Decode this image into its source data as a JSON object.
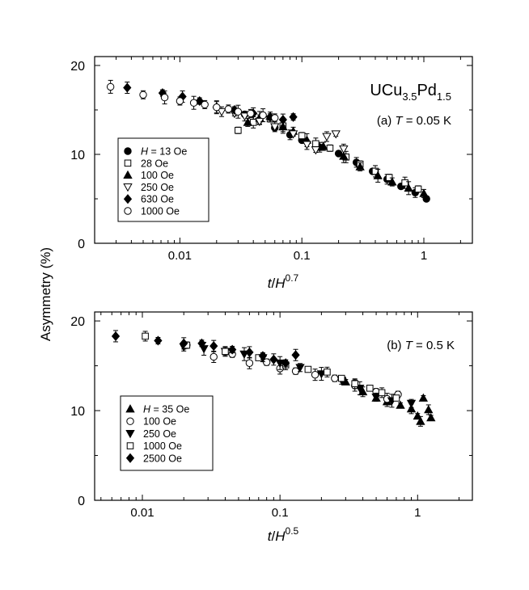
{
  "y_axis_label": "Asymmetry  (%)",
  "chart_data": [
    {
      "type": "scatter",
      "panel": "a",
      "title": "UCu3.5Pd1.5",
      "title_parts": {
        "base1": "UCu",
        "sub1": "3.5",
        "base2": "Pd",
        "sub2": "1.5"
      },
      "subtitle": {
        "prefix": "(a) ",
        "var": "T",
        "suffix": " = 0.05 K"
      },
      "xlabel": {
        "var1": "t",
        "slash": "/",
        "var2": "H",
        "sup": "0.7"
      },
      "ylabel": "Asymmetry  (%)",
      "xscale": "log",
      "xlim": [
        0.002,
        2.5
      ],
      "ylim": [
        0,
        21
      ],
      "xticks": [
        {
          "value": 0.01,
          "label": "0.01"
        },
        {
          "value": 0.1,
          "label": "0.1"
        },
        {
          "value": 1,
          "label": "1"
        }
      ],
      "yticks": [
        {
          "value": 0,
          "label": "0"
        },
        {
          "value": 10,
          "label": "10"
        },
        {
          "value": 20,
          "label": "20"
        }
      ],
      "legend_position": "middle-left",
      "legend_field": "H",
      "series": [
        {
          "name": "H = 13 Oe",
          "label_prefix": "",
          "label_value": "13 Oe",
          "marker": "circle",
          "fill": "#000000",
          "points": [
            [
              0.034,
              14.5
            ],
            [
              0.045,
              13.9
            ],
            [
              0.06,
              13.0
            ],
            [
              0.08,
              12.2
            ],
            [
              0.1,
              11.6
            ],
            [
              0.14,
              10.8
            ],
            [
              0.2,
              10.1
            ],
            [
              0.28,
              9.1
            ],
            [
              0.38,
              8.1
            ],
            [
              0.5,
              7.2
            ],
            [
              0.65,
              6.4
            ],
            [
              0.85,
              5.7
            ],
            [
              1.05,
              5.0
            ]
          ]
        },
        {
          "name": "28 Oe",
          "label_prefix": "",
          "label_value": "28 Oe",
          "marker": "square",
          "fill": "#ffffff",
          "points": [
            [
              0.03,
              12.7
            ],
            [
              0.04,
              13.6
            ],
            [
              0.055,
              14.0
            ],
            [
              0.07,
              13.2
            ],
            [
              0.1,
              12.1
            ],
            [
              0.13,
              11.2
            ],
            [
              0.17,
              10.7
            ],
            [
              0.23,
              9.7
            ],
            [
              0.3,
              8.9
            ],
            [
              0.4,
              8.1
            ],
            [
              0.52,
              7.4
            ],
            [
              0.7,
              6.8
            ],
            [
              0.9,
              6.1
            ]
          ]
        },
        {
          "name": "100 Oe",
          "label_prefix": "",
          "label_value": "100 Oe",
          "marker": "triangle-up",
          "fill": "#000000",
          "points": [
            [
              0.036,
              13.6
            ],
            [
              0.045,
              14.1
            ],
            [
              0.055,
              14.3
            ],
            [
              0.07,
              13.1
            ],
            [
              0.085,
              12.6
            ],
            [
              0.11,
              11.6
            ],
            [
              0.15,
              10.9
            ],
            [
              0.22,
              9.8
            ],
            [
              0.3,
              8.6
            ],
            [
              0.42,
              7.6
            ],
            [
              0.55,
              6.9
            ],
            [
              0.75,
              6.2
            ],
            [
              1.0,
              5.6
            ]
          ]
        },
        {
          "name": "250 Oe",
          "label_prefix": "",
          "label_value": "250 Oe",
          "marker": "triangle-down",
          "fill": "#ffffff",
          "points": [
            [
              0.022,
              14.8
            ],
            [
              0.028,
              14.6
            ],
            [
              0.034,
              14.3
            ],
            [
              0.045,
              13.7
            ],
            [
              0.06,
              13.1
            ],
            [
              0.085,
              12.3
            ],
            [
              0.11,
              11.1
            ],
            [
              0.13,
              10.5
            ],
            [
              0.16,
              12.0
            ],
            [
              0.19,
              12.3
            ],
            [
              0.22,
              10.6
            ]
          ]
        },
        {
          "name": "630 Oe",
          "label_prefix": "",
          "label_value": "630 Oe",
          "marker": "diamond",
          "fill": "#000000",
          "points": [
            [
              0.0037,
              17.5
            ],
            [
              0.0072,
              16.9
            ],
            [
              0.0105,
              16.5
            ],
            [
              0.0145,
              16.0
            ],
            [
              0.02,
              15.3
            ],
            [
              0.028,
              15.0
            ],
            [
              0.04,
              14.6
            ],
            [
              0.055,
              14.2
            ],
            [
              0.07,
              13.9
            ],
            [
              0.085,
              14.2
            ]
          ]
        },
        {
          "name": "1000 Oe",
          "label_prefix": "",
          "label_value": "1000 Oe",
          "marker": "circle",
          "fill": "#ffffff",
          "points": [
            [
              0.0027,
              17.6
            ],
            [
              0.005,
              16.7
            ],
            [
              0.0075,
              16.4
            ],
            [
              0.01,
              16.0
            ],
            [
              0.013,
              15.8
            ],
            [
              0.016,
              15.6
            ],
            [
              0.02,
              15.3
            ],
            [
              0.025,
              15.1
            ],
            [
              0.03,
              14.8
            ],
            [
              0.038,
              14.6
            ],
            [
              0.048,
              14.4
            ],
            [
              0.06,
              14.1
            ]
          ]
        }
      ]
    },
    {
      "type": "scatter",
      "panel": "b",
      "title": "",
      "subtitle": {
        "prefix": "(b) ",
        "var": "T",
        "suffix": " = 0.5 K"
      },
      "xlabel": {
        "var1": "t",
        "slash": "/",
        "var2": "H",
        "sup": "0.5"
      },
      "ylabel": "Asymmetry  (%)",
      "xscale": "log",
      "xlim": [
        0.0045,
        2.5
      ],
      "ylim": [
        0,
        21
      ],
      "xticks": [
        {
          "value": 0.01,
          "label": "0.01"
        },
        {
          "value": 0.1,
          "label": "0.1"
        },
        {
          "value": 1,
          "label": "1"
        }
      ],
      "yticks": [
        {
          "value": 0,
          "label": "0"
        },
        {
          "value": 10,
          "label": "10"
        },
        {
          "value": 20,
          "label": "20"
        }
      ],
      "legend_position": "bottom-left",
      "legend_field": "H",
      "series": [
        {
          "name": "H = 35 Oe",
          "label_prefix": "",
          "label_value": "35 Oe",
          "marker": "triangle-up",
          "fill": "#000000",
          "points": [
            [
              0.3,
              13.2
            ],
            [
              0.4,
              12.1
            ],
            [
              0.5,
              11.4
            ],
            [
              0.6,
              11.0
            ],
            [
              0.75,
              10.6
            ],
            [
              0.9,
              10.2
            ],
            [
              1.0,
              9.4
            ],
            [
              1.05,
              8.8
            ],
            [
              1.1,
              11.4
            ],
            [
              1.2,
              10.1
            ],
            [
              1.25,
              9.2
            ]
          ]
        },
        {
          "name": "100 Oe",
          "label_prefix": "",
          "label_value": "100 Oe",
          "marker": "circle",
          "fill": "#ffffff",
          "points": [
            [
              0.021,
              17.3
            ],
            [
              0.033,
              16.0
            ],
            [
              0.045,
              16.3
            ],
            [
              0.06,
              15.3
            ],
            [
              0.08,
              15.4
            ],
            [
              0.1,
              14.7
            ],
            [
              0.13,
              14.4
            ],
            [
              0.18,
              14.0
            ],
            [
              0.25,
              13.6
            ],
            [
              0.35,
              12.8
            ],
            [
              0.5,
              12.1
            ],
            [
              0.6,
              11.3
            ],
            [
              0.72,
              11.8
            ]
          ]
        },
        {
          "name": "250 Oe",
          "label_prefix": "",
          "label_value": "250 Oe",
          "marker": "triangle-down",
          "fill": "#000000",
          "points": [
            [
              0.02,
              17.1
            ],
            [
              0.028,
              16.9
            ],
            [
              0.04,
              16.6
            ],
            [
              0.055,
              16.3
            ],
            [
              0.075,
              15.9
            ],
            [
              0.1,
              15.3
            ],
            [
              0.14,
              14.8
            ],
            [
              0.2,
              14.1
            ],
            [
              0.28,
              13.4
            ],
            [
              0.38,
              12.5
            ],
            [
              0.5,
              11.5
            ],
            [
              0.65,
              11.1
            ],
            [
              0.9,
              10.8
            ]
          ]
        },
        {
          "name": "1000 Oe",
          "label_prefix": "",
          "label_value": "1000 Oe",
          "marker": "square",
          "fill": "#ffffff",
          "points": [
            [
              0.0105,
              18.3
            ],
            [
              0.021,
              17.3
            ],
            [
              0.04,
              16.6
            ],
            [
              0.07,
              15.9
            ],
            [
              0.11,
              15.1
            ],
            [
              0.16,
              14.6
            ],
            [
              0.22,
              14.3
            ],
            [
              0.28,
              13.6
            ],
            [
              0.35,
              13.0
            ],
            [
              0.45,
              12.5
            ],
            [
              0.55,
              12.0
            ],
            [
              0.7,
              11.4
            ]
          ]
        },
        {
          "name": "2500 Oe",
          "label_prefix": "",
          "label_value": "2500 Oe",
          "marker": "diamond",
          "fill": "#000000",
          "points": [
            [
              0.0064,
              18.3
            ],
            [
              0.013,
              17.8
            ],
            [
              0.02,
              17.5
            ],
            [
              0.027,
              17.5
            ],
            [
              0.033,
              17.2
            ],
            [
              0.045,
              16.8
            ],
            [
              0.06,
              16.5
            ],
            [
              0.075,
              16.1
            ],
            [
              0.09,
              15.7
            ],
            [
              0.11,
              15.3
            ],
            [
              0.13,
              16.2
            ]
          ]
        }
      ]
    }
  ]
}
